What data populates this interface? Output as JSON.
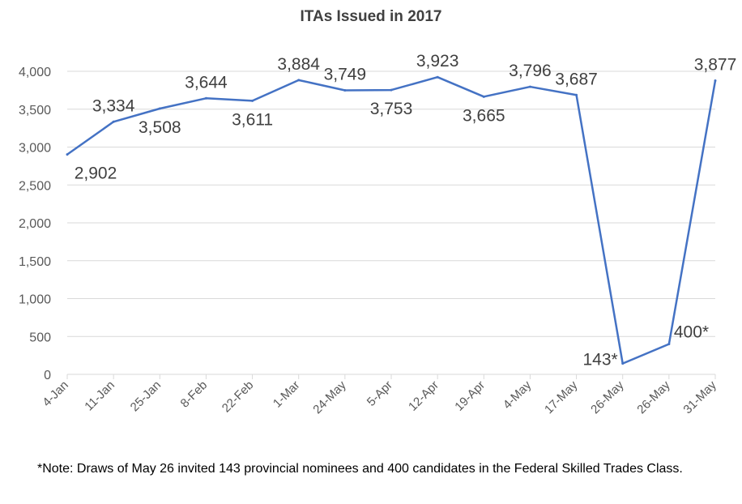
{
  "chart_data": {
    "type": "line",
    "title": "ITAs Issued in 2017",
    "categories": [
      "4-Jan",
      "11-Jan",
      "25-Jan",
      "8-Feb",
      "22-Feb",
      "1-Mar",
      "24-May",
      "5-Apr",
      "12-Apr",
      "19-Apr",
      "4-May",
      "17-May",
      "26-May",
      "26-May",
      "31-May"
    ],
    "values": [
      2902,
      3334,
      3508,
      3644,
      3611,
      3884,
      3749,
      3753,
      3923,
      3665,
      3796,
      3687,
      143,
      400,
      3877
    ],
    "data_labels": [
      "2,902",
      "3,334",
      "3,508",
      "3,644",
      "3,611",
      "3,884",
      "3,749",
      "3,753",
      "3,923",
      "3,665",
      "3,796",
      "3,687",
      "143*",
      "400*",
      "3,877"
    ],
    "yticks": [
      "0",
      "500",
      "1,000",
      "1,500",
      "2,000",
      "2,500",
      "3,000",
      "3,500",
      "4,000"
    ],
    "ylim": [
      0,
      4000
    ],
    "grid": true,
    "line_color": "#4472C4",
    "xlabel": "",
    "ylabel": ""
  },
  "note": "*Note: Draws of May 26 invited 143 provincial nominees and 400 candidates in the Federal Skilled Trades Class."
}
